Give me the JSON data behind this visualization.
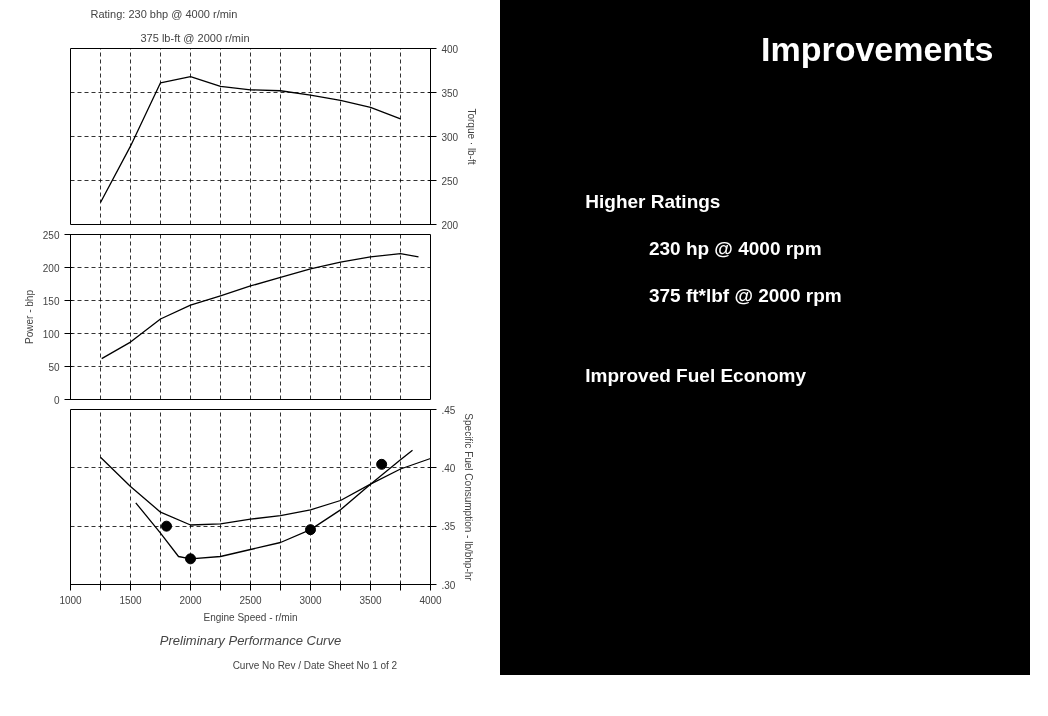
{
  "chart_data": [
    {
      "type": "line",
      "annotations": [
        "Rating:  230 bhp @ 4000 r/min",
        "375 lb-ft @ 2000 r/min"
      ],
      "ylabel": "Torque · lb-ft",
      "x": [
        1250,
        1500,
        1750,
        2000,
        2250,
        2500,
        2750,
        3000,
        3250,
        3500,
        3750
      ],
      "series": [
        {
          "color": "#000000",
          "values": [
            225,
            289,
            361,
            368,
            357,
            353,
            352,
            347,
            341,
            333,
            320
          ]
        }
      ],
      "xlim": [
        1000,
        4000
      ],
      "xticks": [
        {
          "value": 1250,
          "label": null
        },
        {
          "value": 1500,
          "label": null
        },
        {
          "value": 1750,
          "label": null
        },
        {
          "value": 2000,
          "label": null
        },
        {
          "value": 2250,
          "label": null
        },
        {
          "value": 2500,
          "label": null
        },
        {
          "value": 2750,
          "label": null
        },
        {
          "value": 3000,
          "label": null
        },
        {
          "value": 3250,
          "label": null
        },
        {
          "value": 3500,
          "label": null
        },
        {
          "value": 3750,
          "label": null
        }
      ],
      "ylim": [
        200,
        400
      ],
      "yticks": [
        200,
        250,
        300,
        350,
        400
      ],
      "tick_labels": "y",
      "grid": true
    },
    {
      "type": "line",
      "ylabel": "Power - bhp",
      "x": [
        1260,
        1500,
        1750,
        2000,
        2250,
        2500,
        2750,
        3000,
        3250,
        3500,
        3750,
        3900
      ],
      "series": [
        {
          "color": "#000000",
          "values": [
            62,
            87,
            122,
            143,
            157,
            172,
            185,
            198,
            208,
            216,
            221,
            216
          ]
        }
      ],
      "xlim": [
        1000,
        4000
      ],
      "xticks": [
        {
          "value": 1250,
          "label": null
        },
        {
          "value": 1500,
          "label": null
        },
        {
          "value": 1750,
          "label": null
        },
        {
          "value": 2000,
          "label": null
        },
        {
          "value": 2250,
          "label": null
        },
        {
          "value": 2500,
          "label": null
        },
        {
          "value": 2750,
          "label": null
        },
        {
          "value": 3000,
          "label": null
        },
        {
          "value": 3250,
          "label": null
        },
        {
          "value": 3500,
          "label": null
        },
        {
          "value": 3750,
          "label": null
        }
      ],
      "ylim": [
        0,
        250
      ],
      "yticks": [
        0,
        50,
        100,
        150,
        200,
        250
      ],
      "tick_labels": "y",
      "grid": true
    },
    {
      "type": "line",
      "xlabel": "Engine Speed - r/min",
      "ylabel": "Specific Fuel Consumption - lb/bhp-hr",
      "annotations": [
        "Preliminary Performance Curve",
        "Curve No",
        "Rev / Date",
        "Sheet No",
        "1 of 2"
      ],
      "series": [
        {
          "color": "#000000",
          "x": [
            1250,
            1500,
            1750,
            2000,
            2250,
            2500,
            2750,
            3000,
            3250,
            3500,
            3750,
            4000
          ],
          "values": [
            0.409,
            0.384,
            0.362,
            0.351,
            0.352,
            0.356,
            0.359,
            0.364,
            0.372,
            0.386,
            0.399,
            0.408
          ]
        },
        {
          "color": "#000000",
          "x": [
            1544,
            1750,
            1900,
            2000,
            2250,
            2500,
            2750,
            3000,
            3250,
            3500,
            3750,
            3850
          ],
          "values": [
            0.37,
            0.344,
            0.324,
            0.322,
            0.324,
            0.33,
            0.336,
            0.347,
            0.364,
            0.386,
            0.407,
            0.415
          ]
        },
        {
          "type": "scatter",
          "marker": "circle",
          "color": "#000000",
          "x": [
            1800,
            2000,
            3000,
            3593
          ],
          "values": [
            0.35,
            0.322,
            0.347,
            0.403
          ]
        }
      ],
      "xlim": [
        1000,
        4000
      ],
      "xticks": [
        1000,
        {
          "value": 1250,
          "label": null
        },
        1500,
        {
          "value": 1750,
          "label": null
        },
        2000,
        {
          "value": 2250,
          "label": null
        },
        2500,
        {
          "value": 2750,
          "label": null
        },
        3000,
        {
          "value": 3250,
          "label": null
        },
        3500,
        {
          "value": 3750,
          "label": null
        },
        4000
      ],
      "ylim": [
        0.3,
        0.45
      ],
      "yticks": [
        {
          "value": 0.3,
          "label": ".30"
        },
        {
          "value": 0.35,
          "label": ".35"
        },
        {
          "value": 0.4,
          "label": ".40"
        },
        {
          "value": 0.45,
          "label": ".45"
        }
      ],
      "grid": true
    },
    {
      "type": "other",
      "title": "Improvements",
      "annotations": [
        "Higher Ratings",
        "230 hp @ 4000 rpm",
        "375 ft*lbf @ 2000 rpm",
        "Improved Fuel Economy"
      ]
    }
  ]
}
